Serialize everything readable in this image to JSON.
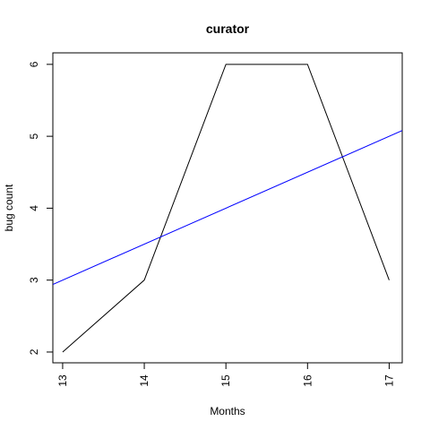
{
  "chart_data": {
    "type": "line",
    "title": "curator",
    "xlabel": "Months",
    "ylabel": "bug count",
    "xlim": [
      12.88,
      17.16
    ],
    "ylim": [
      1.85,
      6.16
    ],
    "x_ticks": [
      13,
      14,
      15,
      16,
      17
    ],
    "y_ticks": [
      2,
      3,
      4,
      5,
      6
    ],
    "x_tick_labels": [
      "13",
      "14",
      "15",
      "16",
      "17"
    ],
    "y_tick_labels": [
      "2",
      "3",
      "4",
      "5",
      "6"
    ],
    "grid": false,
    "legend": "none",
    "series": [
      {
        "x": [
          13,
          14,
          15,
          16,
          17
        ],
        "values": [
          2,
          3,
          6,
          6,
          3
        ],
        "color": "#000000"
      }
    ],
    "trend_line": {
      "intercept": -3.5,
      "slope": 0.5,
      "color": "#0000ff"
    }
  }
}
